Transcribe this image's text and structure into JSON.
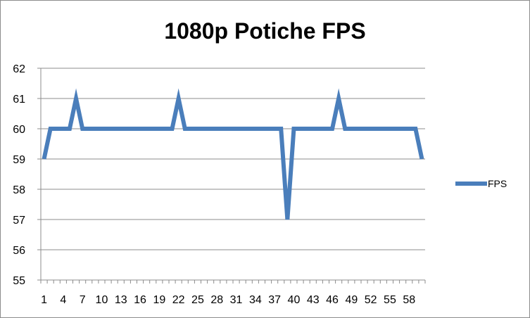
{
  "chart_data": {
    "type": "line",
    "title": "1080p Potiche FPS",
    "xlabel": "",
    "ylabel": "",
    "ylim": [
      55,
      62
    ],
    "y_ticks": [
      "55",
      "56",
      "57",
      "58",
      "59",
      "60",
      "61",
      "62"
    ],
    "x_ticks": [
      "1",
      "4",
      "7",
      "10",
      "13",
      "16",
      "19",
      "22",
      "25",
      "28",
      "31",
      "34",
      "37",
      "40",
      "43",
      "46",
      "49",
      "52",
      "55",
      "58"
    ],
    "grid": "horizontal",
    "legend_position": "right",
    "series": [
      {
        "name": "FPS",
        "color": "#4a7ebb",
        "x": [
          1,
          2,
          3,
          4,
          5,
          6,
          7,
          8,
          9,
          10,
          11,
          12,
          13,
          14,
          15,
          16,
          17,
          18,
          19,
          20,
          21,
          22,
          23,
          24,
          25,
          26,
          27,
          28,
          29,
          30,
          31,
          32,
          33,
          34,
          35,
          36,
          37,
          38,
          39,
          40,
          41,
          42,
          43,
          44,
          45,
          46,
          47,
          48,
          49,
          50,
          51,
          52,
          53,
          54,
          55,
          56,
          57,
          58,
          59,
          60
        ],
        "values": [
          59,
          60,
          60,
          60,
          60,
          61,
          60,
          60,
          60,
          60,
          60,
          60,
          60,
          60,
          60,
          60,
          60,
          60,
          60,
          60,
          60,
          61,
          60,
          60,
          60,
          60,
          60,
          60,
          60,
          60,
          60,
          60,
          60,
          60,
          60,
          60,
          60,
          60,
          57,
          60,
          60,
          60,
          60,
          60,
          60,
          60,
          61,
          60,
          60,
          60,
          60,
          60,
          60,
          60,
          60,
          60,
          60,
          60,
          60,
          59
        ]
      }
    ]
  }
}
